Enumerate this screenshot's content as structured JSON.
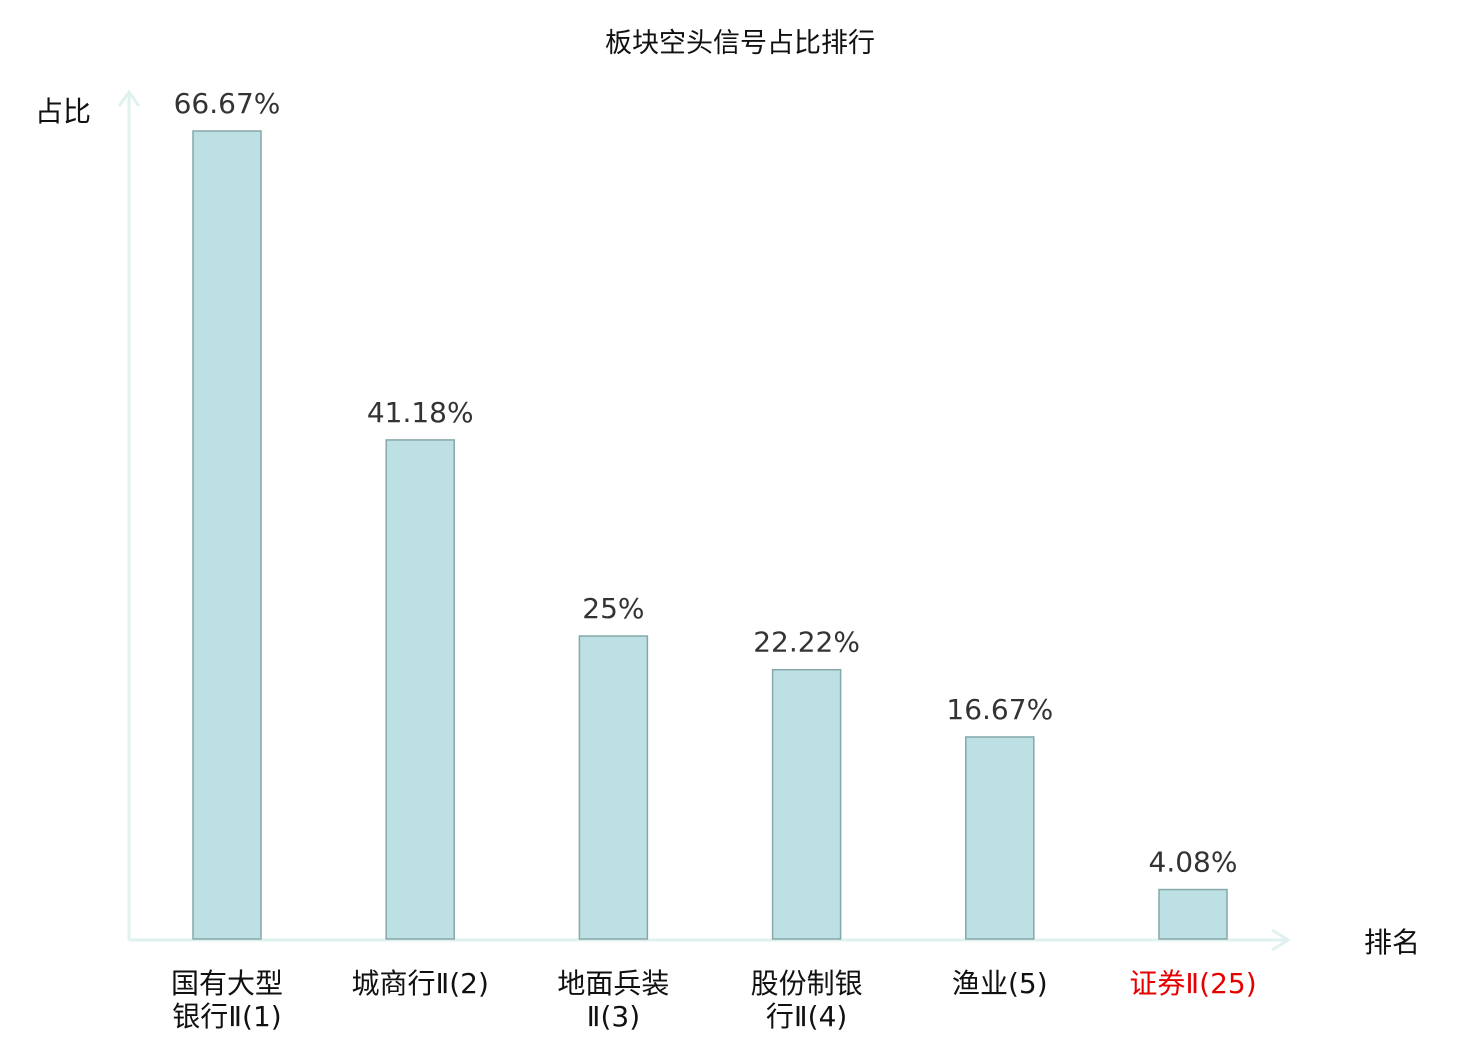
{
  "chart_data": {
    "type": "bar",
    "title": "板块空头信号占比排行",
    "xlabel": "排名",
    "ylabel": "占比",
    "categories": [
      [
        "国有大型",
        "银行Ⅱ(1)"
      ],
      [
        "城商行Ⅱ(2)"
      ],
      [
        "地面兵装",
        "Ⅱ(3)"
      ],
      [
        "股份制银",
        "行Ⅱ(4)"
      ],
      [
        "渔业(5)"
      ],
      [
        "证券Ⅱ(25)"
      ]
    ],
    "values": [
      66.67,
      41.18,
      25,
      22.22,
      16.67,
      4.08
    ],
    "data_labels": [
      "66.67%",
      "41.18%",
      "25%",
      "22.22%",
      "16.67%",
      "4.08%"
    ],
    "highlighted_category_index": 5,
    "ylim": [
      0,
      70
    ],
    "grid": false,
    "colors": {
      "bar_fill": "#bce0e3",
      "bar_stroke": "#86a8a8",
      "axis": "#e0f2ef",
      "text": "#333333",
      "highlight_text": "#e60000"
    }
  }
}
